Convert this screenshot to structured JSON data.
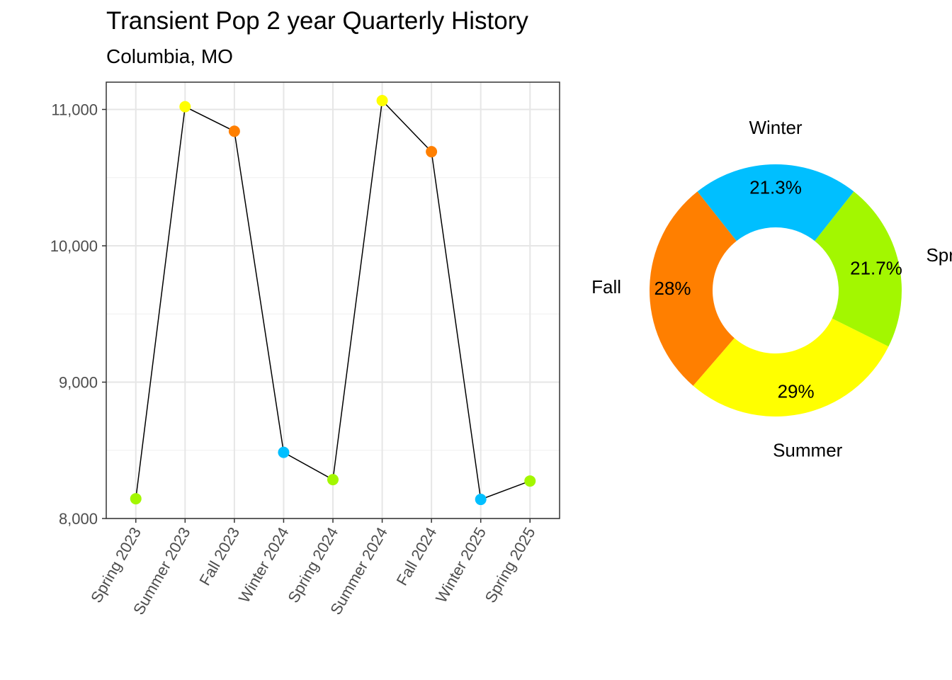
{
  "title": "Transient Pop 2 year Quarterly History",
  "subtitle": "Columbia, MO",
  "chart_data": [
    {
      "type": "line",
      "categories": [
        "Spring 2023",
        "Summer 2023",
        "Fall 2023",
        "Winter 2024",
        "Spring 2024",
        "Summer 2024",
        "Fall 2024",
        "Winter 2025",
        "Spring 2025"
      ],
      "values": [
        8145,
        11020,
        10840,
        8485,
        8285,
        11065,
        10690,
        8140,
        8275
      ],
      "season": [
        "Spring",
        "Summer",
        "Fall",
        "Winter",
        "Spring",
        "Summer",
        "Fall",
        "Winter",
        "Spring"
      ],
      "ylim": [
        8000,
        11200
      ],
      "yticks": [
        8000,
        9000,
        10000,
        11000
      ],
      "ytick_labels": [
        "8,000",
        "9,000",
        "10,000",
        "11,000"
      ],
      "grid": true,
      "line_color": "#000000",
      "season_colors": {
        "Spring": "#A3F700",
        "Summer": "#FFFF00",
        "Fall": "#FF7F00",
        "Winter": "#00BFFF"
      }
    },
    {
      "type": "pie",
      "donut": true,
      "slices": [
        {
          "name": "Winter",
          "value": 21.3,
          "label": "21.3%",
          "color": "#00BFFF"
        },
        {
          "name": "Spring",
          "value": 21.7,
          "label": "21.7%",
          "color": "#A3F700"
        },
        {
          "name": "Summer",
          "value": 29.0,
          "label": "29%",
          "color": "#FFFF00"
        },
        {
          "name": "Fall",
          "value": 28.0,
          "label": "28%",
          "color": "#FF7F00"
        }
      ]
    }
  ]
}
